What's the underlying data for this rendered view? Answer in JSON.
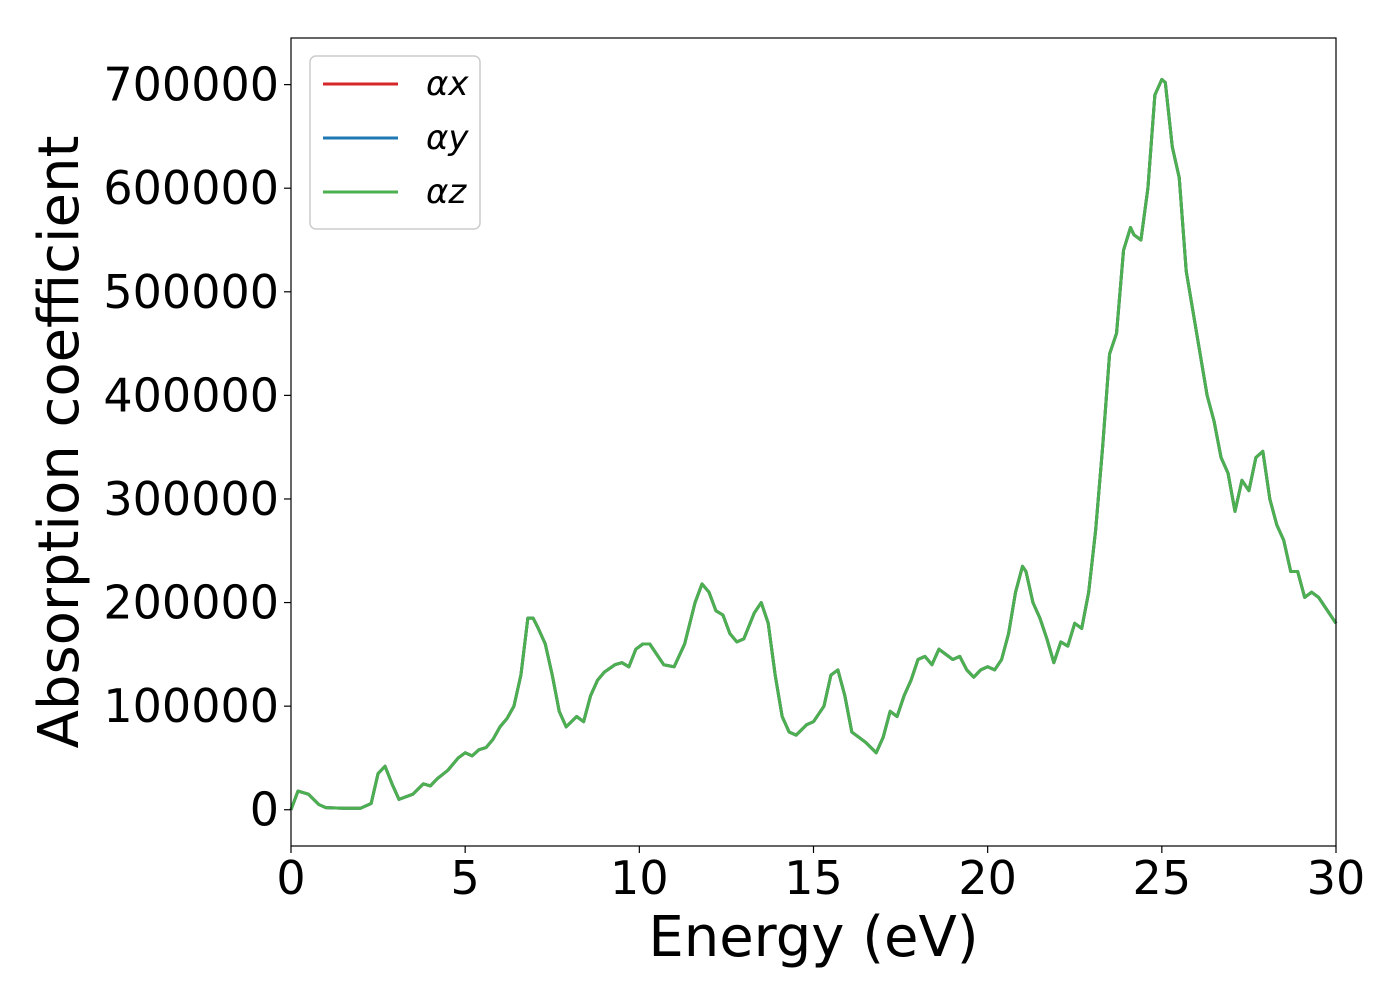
{
  "chart_data": {
    "type": "line",
    "title": "",
    "xlabel": "Energy (eV)",
    "ylabel": "Absorption coefficient",
    "xlim": [
      0,
      30
    ],
    "ylim": [
      -35000,
      745000
    ],
    "xticks": [
      0,
      5,
      10,
      15,
      20,
      25,
      30
    ],
    "xtick_labels": [
      "0",
      "5",
      "10",
      "15",
      "20",
      "25",
      "30"
    ],
    "yticks": [
      0,
      100000,
      200000,
      300000,
      400000,
      500000,
      600000,
      700000
    ],
    "ytick_labels": [
      "0",
      "100000",
      "200000",
      "300000",
      "400000",
      "500000",
      "600000",
      "700000"
    ],
    "grid": false,
    "legend_position": "top-left",
    "x": [
      0,
      0.2,
      0.5,
      0.8,
      1.0,
      1.5,
      2.0,
      2.3,
      2.5,
      2.7,
      2.9,
      3.1,
      3.5,
      3.8,
      4.0,
      4.2,
      4.5,
      4.8,
      5.0,
      5.2,
      5.4,
      5.6,
      5.8,
      6.0,
      6.2,
      6.4,
      6.6,
      6.8,
      6.95,
      7.1,
      7.3,
      7.5,
      7.7,
      7.9,
      8.2,
      8.4,
      8.6,
      8.8,
      9.0,
      9.3,
      9.5,
      9.7,
      9.9,
      10.1,
      10.3,
      10.5,
      10.7,
      11.0,
      11.3,
      11.6,
      11.8,
      12.0,
      12.2,
      12.4,
      12.6,
      12.8,
      13.0,
      13.3,
      13.5,
      13.7,
      13.9,
      14.1,
      14.3,
      14.5,
      14.8,
      15.0,
      15.3,
      15.5,
      15.7,
      15.9,
      16.1,
      16.3,
      16.5,
      16.8,
      17.0,
      17.2,
      17.4,
      17.6,
      17.8,
      18.0,
      18.2,
      18.4,
      18.6,
      18.8,
      19.0,
      19.2,
      19.4,
      19.6,
      19.8,
      20.0,
      20.2,
      20.4,
      20.6,
      20.8,
      21.0,
      21.1,
      21.3,
      21.5,
      21.7,
      21.9,
      22.1,
      22.3,
      22.5,
      22.7,
      22.9,
      23.1,
      23.3,
      23.5,
      23.7,
      23.9,
      24.1,
      24.2,
      24.4,
      24.6,
      24.8,
      25.0,
      25.1,
      25.3,
      25.5,
      25.7,
      25.9,
      26.1,
      26.3,
      26.5,
      26.7,
      26.9,
      27.1,
      27.3,
      27.5,
      27.7,
      27.9,
      28.1,
      28.3,
      28.5,
      28.7,
      28.9,
      29.1,
      29.3,
      29.5,
      29.7,
      30.0
    ],
    "series": [
      {
        "name": "αx",
        "color": "#d62728",
        "values": [
          0,
          18000,
          15000,
          5000,
          2000,
          1500,
          1500,
          6000,
          35000,
          42000,
          25000,
          10000,
          15000,
          25000,
          23000,
          30000,
          38000,
          50000,
          55000,
          52000,
          58000,
          60000,
          68000,
          80000,
          88000,
          100000,
          130000,
          185000,
          185000,
          175000,
          160000,
          130000,
          95000,
          80000,
          90000,
          85000,
          110000,
          125000,
          133000,
          140000,
          142000,
          138000,
          155000,
          160000,
          160000,
          150000,
          140000,
          138000,
          160000,
          200000,
          218000,
          210000,
          192000,
          188000,
          170000,
          162000,
          165000,
          190000,
          200000,
          180000,
          130000,
          90000,
          75000,
          72000,
          82000,
          85000,
          100000,
          130000,
          135000,
          110000,
          75000,
          70000,
          65000,
          55000,
          70000,
          95000,
          90000,
          110000,
          125000,
          145000,
          148000,
          140000,
          155000,
          150000,
          145000,
          148000,
          135000,
          128000,
          135000,
          138000,
          135000,
          145000,
          170000,
          210000,
          235000,
          230000,
          200000,
          185000,
          165000,
          142000,
          162000,
          158000,
          180000,
          175000,
          210000,
          270000,
          350000,
          440000,
          460000,
          540000,
          562000,
          555000,
          550000,
          600000,
          690000,
          705000,
          702000,
          640000,
          610000,
          520000,
          480000,
          440000,
          400000,
          375000,
          340000,
          325000,
          288000,
          318000,
          308000,
          340000,
          346000,
          300000,
          275000,
          260000,
          230000,
          230000,
          205000,
          210000,
          205000,
          195000,
          180000
        ]
      },
      {
        "name": "αy",
        "color": "#1f77b4",
        "values": [
          0,
          18000,
          15000,
          5000,
          2000,
          1500,
          1500,
          6000,
          35000,
          42000,
          25000,
          10000,
          15000,
          25000,
          23000,
          30000,
          38000,
          50000,
          55000,
          52000,
          58000,
          60000,
          68000,
          80000,
          88000,
          100000,
          130000,
          185000,
          185000,
          175000,
          160000,
          130000,
          95000,
          80000,
          90000,
          85000,
          110000,
          125000,
          133000,
          140000,
          142000,
          138000,
          155000,
          160000,
          160000,
          150000,
          140000,
          138000,
          160000,
          200000,
          218000,
          210000,
          192000,
          188000,
          170000,
          162000,
          165000,
          190000,
          200000,
          180000,
          130000,
          90000,
          75000,
          72000,
          82000,
          85000,
          100000,
          130000,
          135000,
          110000,
          75000,
          70000,
          65000,
          55000,
          70000,
          95000,
          90000,
          110000,
          125000,
          145000,
          148000,
          140000,
          155000,
          150000,
          145000,
          148000,
          135000,
          128000,
          135000,
          138000,
          135000,
          145000,
          170000,
          210000,
          235000,
          230000,
          200000,
          185000,
          165000,
          142000,
          162000,
          158000,
          180000,
          175000,
          210000,
          270000,
          350000,
          440000,
          460000,
          540000,
          562000,
          555000,
          550000,
          600000,
          690000,
          705000,
          702000,
          640000,
          610000,
          520000,
          480000,
          440000,
          400000,
          375000,
          340000,
          325000,
          288000,
          318000,
          308000,
          340000,
          346000,
          300000,
          275000,
          260000,
          230000,
          230000,
          205000,
          210000,
          205000,
          195000,
          180000
        ]
      },
      {
        "name": "αz",
        "color": "#4caf50",
        "values": [
          0,
          18000,
          15000,
          5000,
          2000,
          1500,
          1500,
          6000,
          35000,
          42000,
          25000,
          10000,
          15000,
          25000,
          23000,
          30000,
          38000,
          50000,
          55000,
          52000,
          58000,
          60000,
          68000,
          80000,
          88000,
          100000,
          130000,
          185000,
          185000,
          175000,
          160000,
          130000,
          95000,
          80000,
          90000,
          85000,
          110000,
          125000,
          133000,
          140000,
          142000,
          138000,
          155000,
          160000,
          160000,
          150000,
          140000,
          138000,
          160000,
          200000,
          218000,
          210000,
          192000,
          188000,
          170000,
          162000,
          165000,
          190000,
          200000,
          180000,
          130000,
          90000,
          75000,
          72000,
          82000,
          85000,
          100000,
          130000,
          135000,
          110000,
          75000,
          70000,
          65000,
          55000,
          70000,
          95000,
          90000,
          110000,
          125000,
          145000,
          148000,
          140000,
          155000,
          150000,
          145000,
          148000,
          135000,
          128000,
          135000,
          138000,
          135000,
          145000,
          170000,
          210000,
          235000,
          230000,
          200000,
          185000,
          165000,
          142000,
          162000,
          158000,
          180000,
          175000,
          210000,
          270000,
          350000,
          440000,
          460000,
          540000,
          562000,
          555000,
          550000,
          600000,
          690000,
          705000,
          702000,
          640000,
          610000,
          520000,
          480000,
          440000,
          400000,
          375000,
          340000,
          325000,
          288000,
          318000,
          308000,
          340000,
          346000,
          300000,
          275000,
          260000,
          230000,
          230000,
          205000,
          210000,
          205000,
          195000,
          180000
        ]
      }
    ]
  }
}
